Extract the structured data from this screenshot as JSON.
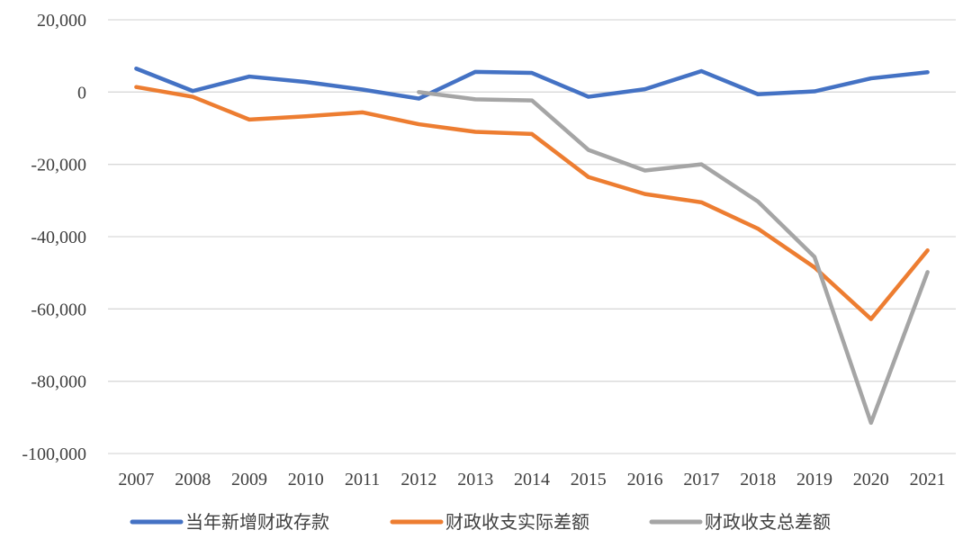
{
  "chart_data": {
    "type": "line",
    "title": "",
    "xlabel": "",
    "ylabel": "",
    "categories": [
      "2007",
      "2008",
      "2009",
      "2010",
      "2011",
      "2012",
      "2013",
      "2014",
      "2015",
      "2016",
      "2017",
      "2018",
      "2019",
      "2020",
      "2021"
    ],
    "ylim": [
      -100000,
      20000
    ],
    "yticks": [
      20000,
      0,
      -20000,
      -40000,
      -60000,
      -80000,
      -100000
    ],
    "ytick_labels": [
      "20,000",
      "0",
      "-20,000",
      "-40,000",
      "-60,000",
      "-80,000",
      "-100,000"
    ],
    "grid": true,
    "legend_position": "bottom",
    "series": [
      {
        "name": "当年新增财政存款",
        "color": "#4472C4",
        "values": [
          6500,
          300,
          4300,
          2800,
          700,
          -1800,
          5600,
          5300,
          -1300,
          800,
          5800,
          -600,
          200,
          3800,
          5500
        ]
      },
      {
        "name": "财政收支实际差额",
        "color": "#ED7D31",
        "values": [
          1400,
          -1300,
          -7600,
          -6700,
          -5600,
          -8900,
          -11000,
          -11600,
          -23500,
          -28200,
          -30500,
          -37800,
          -48500,
          -62800,
          -43800
        ]
      },
      {
        "name": "财政收支总差额",
        "color": "#A5A5A5",
        "values": [
          null,
          null,
          null,
          null,
          null,
          0,
          -2000,
          -2300,
          -16000,
          -21700,
          -20000,
          -30300,
          -45600,
          -91500,
          -49800
        ]
      }
    ]
  }
}
